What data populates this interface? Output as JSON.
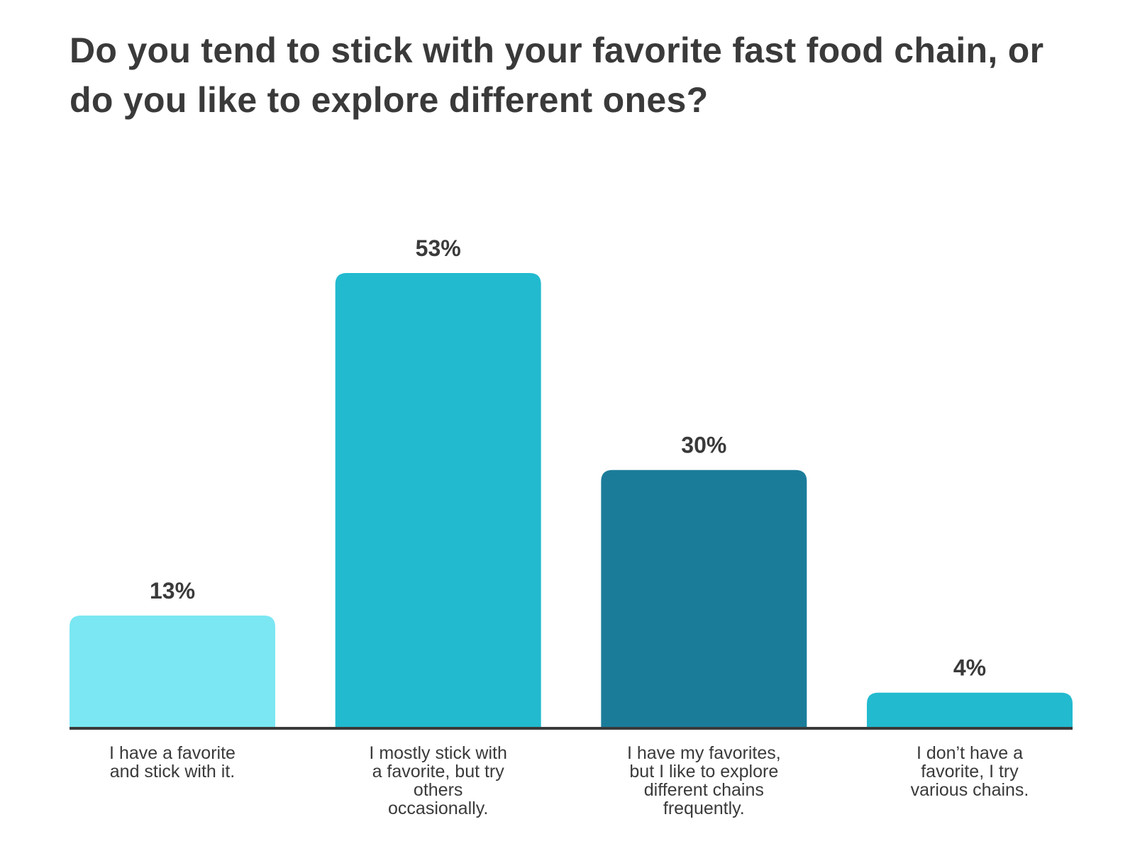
{
  "chart_data": {
    "type": "bar",
    "title": "Do you tend to stick with your favorite fast food chain, or do you like to explore different ones?",
    "categories": [
      "I have a favorite and stick with it.",
      "I mostly stick with a favorite, but try others occasionally.",
      "I have my favorites, but I like to explore different chains frequently.",
      "I don’t have a favorite, I try various chains."
    ],
    "category_label_lines": [
      [
        "I have a favorite",
        "and stick with it."
      ],
      [
        "I mostly stick with",
        "a favorite, but try",
        "others",
        "occasionally."
      ],
      [
        "I have my favorites,",
        "but I like to explore",
        "different chains",
        "frequently."
      ],
      [
        "I don’t have a",
        "favorite, I try",
        "various chains."
      ]
    ],
    "values": [
      13,
      53,
      30,
      4
    ],
    "value_labels": [
      "13%",
      "53%",
      "30%",
      "4%"
    ],
    "bar_colors": [
      "#7ae7f2",
      "#22bacf",
      "#1b7c9a",
      "#22bacf"
    ],
    "baseline_color": "#3a3a3a",
    "ylim": [
      0,
      53
    ],
    "grid": false,
    "legend": "none",
    "xlabel": "",
    "ylabel": ""
  }
}
